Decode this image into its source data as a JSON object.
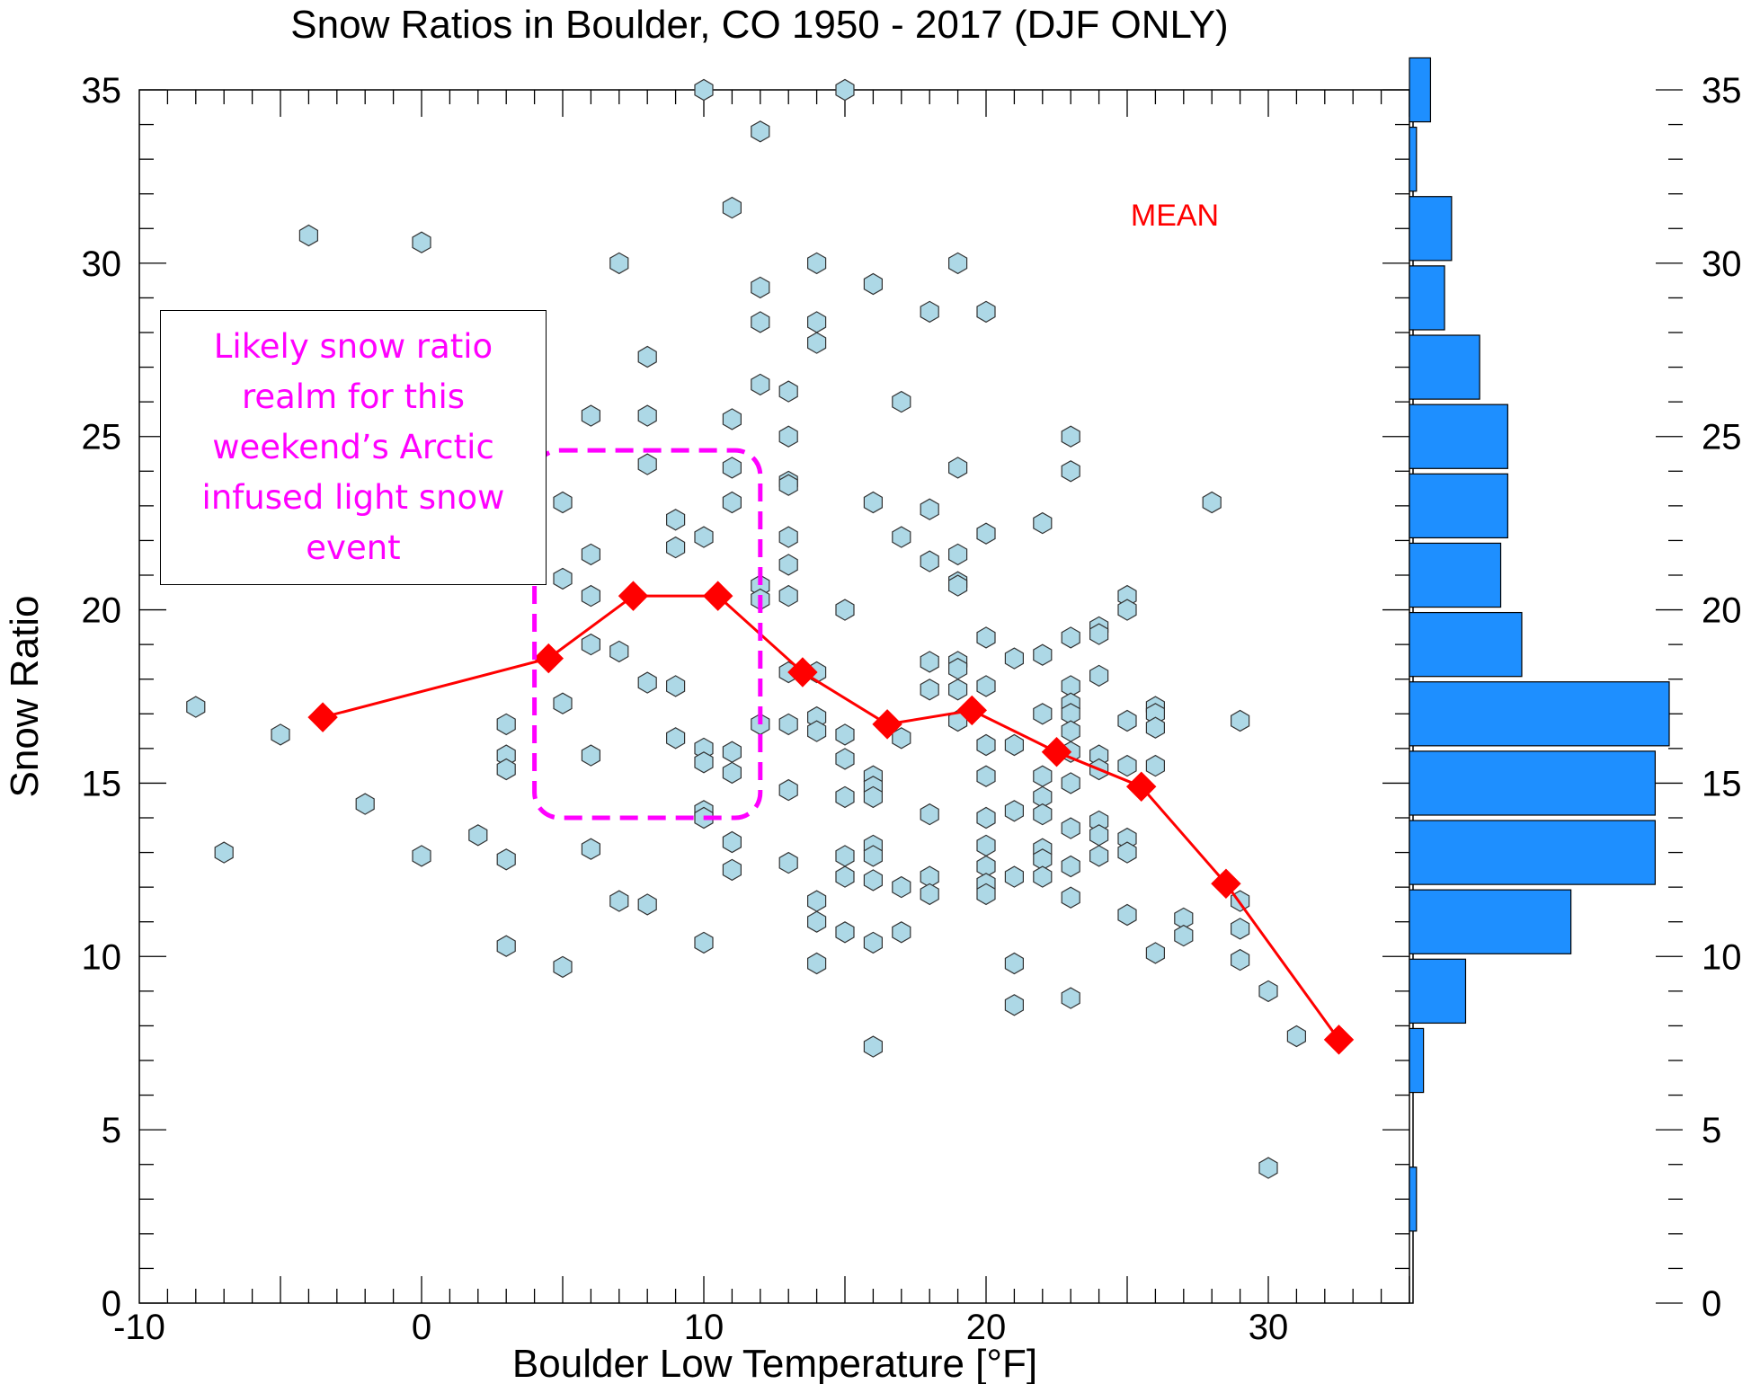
{
  "chart_data": {
    "type": "scatter",
    "title": "Snow Ratios in Boulder, CO   1950 - 2017 (DJF ONLY)",
    "xlabel": "Boulder Low Temperature [°F]",
    "ylabel": "Snow Ratio",
    "xlim": [
      -10,
      35
    ],
    "ylim": [
      0,
      35
    ],
    "x_ticks": [
      "-10",
      "0",
      "10",
      "20",
      "30"
    ],
    "y_ticks": [
      "0",
      "5",
      "10",
      "15",
      "20",
      "25",
      "30",
      "35"
    ],
    "y_ticks_right": [
      "0",
      "5",
      "10",
      "15",
      "20",
      "25",
      "30",
      "35"
    ],
    "mean_label": "MEAN",
    "colors": {
      "points_fill": "#add8e6",
      "points_stroke": "#333333",
      "mean_line": "#ff0000",
      "bars_fill": "#1e8fff",
      "highlight": "#ff00ff"
    },
    "points": [
      [
        -8,
        17.2
      ],
      [
        -7,
        13
      ],
      [
        -5,
        16.4
      ],
      [
        -4,
        30.8
      ],
      [
        -2,
        14.4
      ],
      [
        0,
        30.6
      ],
      [
        0,
        12.9
      ],
      [
        2,
        13.5
      ],
      [
        3,
        16.7
      ],
      [
        3,
        15.8
      ],
      [
        3,
        15.4
      ],
      [
        3,
        12.8
      ],
      [
        3,
        10.3
      ],
      [
        5,
        23.1
      ],
      [
        5,
        20.9
      ],
      [
        5,
        17.3
      ],
      [
        5,
        9.7
      ],
      [
        6,
        25.6
      ],
      [
        6,
        21.6
      ],
      [
        6,
        20.4
      ],
      [
        6,
        19
      ],
      [
        6,
        15.8
      ],
      [
        6,
        13.1
      ],
      [
        7,
        30
      ],
      [
        7,
        18.8
      ],
      [
        7,
        11.6
      ],
      [
        8,
        27.3
      ],
      [
        8,
        25.6
      ],
      [
        8,
        24.2
      ],
      [
        8,
        17.9
      ],
      [
        8,
        11.5
      ],
      [
        9,
        22.6
      ],
      [
        9,
        21.8
      ],
      [
        9,
        17.8
      ],
      [
        9,
        16.3
      ],
      [
        10,
        35
      ],
      [
        10,
        22.1
      ],
      [
        10,
        16
      ],
      [
        10,
        15.6
      ],
      [
        10,
        14.2
      ],
      [
        10,
        14
      ],
      [
        10,
        10.4
      ],
      [
        11,
        31.6
      ],
      [
        11,
        25.5
      ],
      [
        11,
        24.1
      ],
      [
        11,
        23.1
      ],
      [
        11,
        15.9
      ],
      [
        11,
        15.3
      ],
      [
        11,
        13.3
      ],
      [
        11,
        12.5
      ],
      [
        12,
        33.8
      ],
      [
        12,
        29.3
      ],
      [
        12,
        28.3
      ],
      [
        12,
        26.5
      ],
      [
        12,
        20.7
      ],
      [
        12,
        20.3
      ],
      [
        12,
        16.7
      ],
      [
        13,
        26.3
      ],
      [
        13,
        25
      ],
      [
        13,
        23.7
      ],
      [
        13,
        23.6
      ],
      [
        13,
        22.1
      ],
      [
        13,
        21.3
      ],
      [
        13,
        20.4
      ],
      [
        13,
        18.2
      ],
      [
        13,
        16.7
      ],
      [
        13,
        14.8
      ],
      [
        13,
        12.7
      ],
      [
        14,
        30
      ],
      [
        14,
        28.3
      ],
      [
        14,
        27.7
      ],
      [
        14,
        18.2
      ],
      [
        14,
        16.9
      ],
      [
        14,
        16.5
      ],
      [
        14,
        11.6
      ],
      [
        14,
        11
      ],
      [
        14,
        9.8
      ],
      [
        15,
        35
      ],
      [
        15,
        20
      ],
      [
        15,
        16.4
      ],
      [
        15,
        15.7
      ],
      [
        15,
        14.6
      ],
      [
        15,
        12.9
      ],
      [
        15,
        12.3
      ],
      [
        15,
        10.7
      ],
      [
        16,
        29.4
      ],
      [
        16,
        23.1
      ],
      [
        16,
        15.2
      ],
      [
        16,
        14.9
      ],
      [
        16,
        14.6
      ],
      [
        16,
        13.2
      ],
      [
        16,
        12.9
      ],
      [
        16,
        12.2
      ],
      [
        16,
        10.4
      ],
      [
        16,
        7.4
      ],
      [
        17,
        26
      ],
      [
        17,
        22.1
      ],
      [
        17,
        16.3
      ],
      [
        17,
        12
      ],
      [
        17,
        10.7
      ],
      [
        18,
        28.6
      ],
      [
        18,
        22.9
      ],
      [
        18,
        21.4
      ],
      [
        18,
        18.5
      ],
      [
        18,
        17.7
      ],
      [
        18,
        14.1
      ],
      [
        18,
        12.3
      ],
      [
        18,
        11.8
      ],
      [
        19,
        30
      ],
      [
        19,
        24.1
      ],
      [
        19,
        21.6
      ],
      [
        19,
        20.8
      ],
      [
        19,
        20.7
      ],
      [
        19,
        18.5
      ],
      [
        19,
        18.3
      ],
      [
        19,
        17.7
      ],
      [
        19,
        16.8
      ],
      [
        20,
        28.6
      ],
      [
        20,
        22.2
      ],
      [
        20,
        19.2
      ],
      [
        20,
        17.8
      ],
      [
        20,
        16.1
      ],
      [
        20,
        15.2
      ],
      [
        20,
        14
      ],
      [
        20,
        13.2
      ],
      [
        20,
        12.6
      ],
      [
        20,
        12.1
      ],
      [
        20,
        11.8
      ],
      [
        21,
        18.6
      ],
      [
        21,
        16.1
      ],
      [
        21,
        14.2
      ],
      [
        21,
        12.3
      ],
      [
        21,
        9.8
      ],
      [
        21,
        8.6
      ],
      [
        22,
        22.5
      ],
      [
        22,
        18.7
      ],
      [
        22,
        17
      ],
      [
        22,
        15.2
      ],
      [
        22,
        14.6
      ],
      [
        22,
        14.1
      ],
      [
        22,
        13.1
      ],
      [
        22,
        12.8
      ],
      [
        22,
        12.3
      ],
      [
        23,
        25
      ],
      [
        23,
        24
      ],
      [
        23,
        19.2
      ],
      [
        23,
        17.8
      ],
      [
        23,
        17.3
      ],
      [
        23,
        17
      ],
      [
        23,
        16.5
      ],
      [
        23,
        15.9
      ],
      [
        23,
        15
      ],
      [
        23,
        13.7
      ],
      [
        23,
        12.6
      ],
      [
        23,
        11.7
      ],
      [
        23,
        8.8
      ],
      [
        24,
        19.5
      ],
      [
        24,
        19.3
      ],
      [
        24,
        18.1
      ],
      [
        24,
        15.8
      ],
      [
        24,
        15.4
      ],
      [
        24,
        13.9
      ],
      [
        24,
        13.5
      ],
      [
        24,
        12.9
      ],
      [
        25,
        20.4
      ],
      [
        25,
        20
      ],
      [
        25,
        16.8
      ],
      [
        25,
        15.5
      ],
      [
        25,
        13.4
      ],
      [
        25,
        13
      ],
      [
        25,
        11.2
      ],
      [
        26,
        17.2
      ],
      [
        26,
        17
      ],
      [
        26,
        16.6
      ],
      [
        26,
        15.5
      ],
      [
        26,
        10.1
      ],
      [
        27,
        11.1
      ],
      [
        27,
        10.6
      ],
      [
        28,
        23.1
      ],
      [
        29,
        16.8
      ],
      [
        29,
        11.6
      ],
      [
        29,
        10.8
      ],
      [
        29,
        9.9
      ],
      [
        30,
        9
      ],
      [
        30,
        3.9
      ],
      [
        31,
        7.7
      ]
    ],
    "mean_series": {
      "name": "MEAN",
      "x": [
        -3.5,
        4.5,
        7.5,
        10.5,
        13.5,
        16.5,
        19.5,
        22.5,
        25.5,
        28.5,
        32.5
      ],
      "y": [
        16.9,
        18.6,
        20.4,
        20.4,
        18.2,
        16.7,
        17.1,
        15.9,
        14.9,
        12.1,
        7.6
      ]
    },
    "histogram": {
      "bin_width": 2,
      "bin_centers": [
        3,
        7,
        9,
        11,
        13,
        15,
        17,
        19,
        21,
        23,
        25,
        27,
        29,
        31,
        33,
        35
      ],
      "counts": [
        1,
        2,
        8,
        23,
        35,
        35,
        37,
        16,
        13,
        14,
        14,
        10,
        5,
        6,
        1,
        3
      ]
    },
    "highlight_region": {
      "x": [
        4,
        12
      ],
      "y": [
        14,
        24.6
      ]
    },
    "annotation": "Likely snow ratio realm for this weekend’s Arctic infused light snow event"
  }
}
